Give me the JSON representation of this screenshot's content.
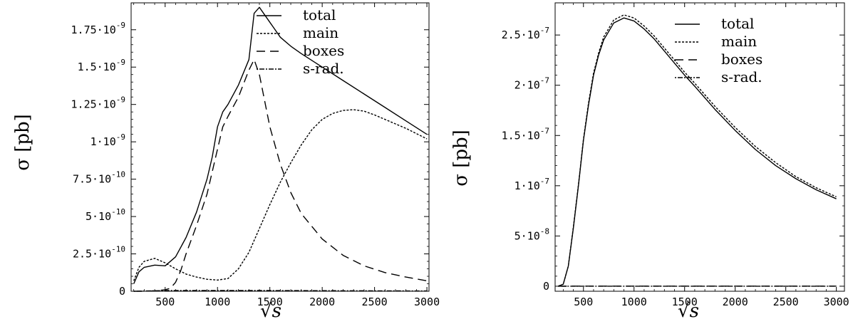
{
  "chart_data": [
    {
      "type": "line",
      "xlabel": "√s",
      "ylabel": "σ [pb]",
      "xlim": [
        175,
        3020
      ],
      "ylim": [
        0,
        1.93e-09
      ],
      "xticks": [
        {
          "value": 500,
          "label": "500"
        },
        {
          "value": 1000,
          "label": "1000"
        },
        {
          "value": 1500,
          "label": "1500"
        },
        {
          "value": 2000,
          "label": "2000"
        },
        {
          "value": 2500,
          "label": "2500"
        },
        {
          "value": 3000,
          "label": "3000"
        }
      ],
      "yticks": [
        {
          "value": 0,
          "mant": "0",
          "exp": ""
        },
        {
          "value": 2.5e-10,
          "mant": "2.5·10",
          "exp": "-10"
        },
        {
          "value": 5e-10,
          "mant": "5·10",
          "exp": "-10"
        },
        {
          "value": 7.5e-10,
          "mant": "7.5·10",
          "exp": "-10"
        },
        {
          "value": 1e-09,
          "mant": "1·10",
          "exp": "-9"
        },
        {
          "value": 1.25e-09,
          "mant": "1.25·10",
          "exp": "-9"
        },
        {
          "value": 1.5e-09,
          "mant": "1.5·10",
          "exp": "-9"
        },
        {
          "value": 1.75e-09,
          "mant": "1.75·10",
          "exp": "-9"
        }
      ],
      "legend_position": "top-right",
      "series": [
        {
          "name": "total",
          "dash": "solid",
          "x": [
            200,
            250,
            300,
            400,
            500,
            600,
            700,
            800,
            900,
            950,
            1000,
            1050,
            1100,
            1200,
            1300,
            1350,
            1400,
            1500,
            1600,
            1700,
            1800,
            2000,
            2200,
            2400,
            2600,
            2800,
            3000
          ],
          "y": [
            5e-11,
            1.3e-10,
            1.6e-10,
            1.75e-10,
            1.7e-10,
            2.3e-10,
            3.6e-10,
            5.3e-10,
            7.5e-10,
            9e-10,
            1.1e-09,
            1.2e-09,
            1.25e-09,
            1.38e-09,
            1.55e-09,
            1.86e-09,
            1.9e-09,
            1.8e-09,
            1.7e-09,
            1.64e-09,
            1.59e-09,
            1.5e-09,
            1.41e-09,
            1.32e-09,
            1.23e-09,
            1.14e-09,
            1.05e-09
          ]
        },
        {
          "name": "main",
          "dash": "dotted",
          "x": [
            200,
            250,
            300,
            400,
            500,
            600,
            700,
            800,
            900,
            1000,
            1100,
            1200,
            1300,
            1400,
            1500,
            1600,
            1700,
            1800,
            1900,
            2000,
            2100,
            2200,
            2300,
            2400,
            2500,
            2600,
            2800,
            3000
          ],
          "y": [
            7e-11,
            1.6e-10,
            2e-10,
            2.2e-10,
            1.9e-10,
            1.5e-10,
            1.15e-10,
            9.5e-11,
            8e-11,
            7.5e-11,
            8.5e-11,
            1.5e-10,
            2.6e-10,
            4.2e-10,
            5.8e-10,
            7.3e-10,
            8.6e-10,
            9.8e-10,
            1.08e-09,
            1.15e-09,
            1.19e-09,
            1.21e-09,
            1.215e-09,
            1.205e-09,
            1.18e-09,
            1.15e-09,
            1.09e-09,
            1.02e-09
          ]
        },
        {
          "name": "boxes",
          "dash": "dashed",
          "x": [
            200,
            300,
            400,
            500,
            550,
            600,
            650,
            700,
            800,
            900,
            1000,
            1050,
            1100,
            1200,
            1300,
            1350,
            1400,
            1500,
            1600,
            1700,
            1800,
            2000,
            2200,
            2400,
            2600,
            2800,
            3000
          ],
          "y": [
            0,
            0,
            3e-12,
            1e-11,
            2e-11,
            6e-11,
            1.4e-10,
            2.5e-10,
            4.4e-10,
            6.5e-10,
            9.5e-10,
            1.1e-09,
            1.17e-09,
            1.3e-09,
            1.48e-09,
            1.55e-09,
            1.45e-09,
            1.1e-09,
            8.5e-10,
            6.6e-10,
            5.2e-10,
            3.5e-10,
            2.4e-10,
            1.7e-10,
            1.25e-10,
            9.5e-11,
            7e-11
          ]
        },
        {
          "name": "s-rad.",
          "dash": "dashdot",
          "x": [
            200,
            500,
            1000,
            1500,
            2000,
            2500,
            3000
          ],
          "y": [
            0,
            5e-12,
            5e-12,
            5e-12,
            4e-12,
            3e-12,
            2e-12
          ]
        }
      ]
    },
    {
      "type": "line",
      "xlabel": "√s",
      "ylabel": "σ [pb]",
      "xlim": [
        220,
        3080
      ],
      "ylim": [
        -5e-09,
        2.82e-07
      ],
      "xticks": [
        {
          "value": 500,
          "label": "500"
        },
        {
          "value": 1000,
          "label": "1000"
        },
        {
          "value": 1500,
          "label": "1500"
        },
        {
          "value": 2000,
          "label": "2000"
        },
        {
          "value": 2500,
          "label": "2500"
        },
        {
          "value": 3000,
          "label": "3000"
        }
      ],
      "yticks": [
        {
          "value": 0,
          "mant": "0",
          "exp": ""
        },
        {
          "value": 5e-08,
          "mant": "5·10",
          "exp": "-8"
        },
        {
          "value": 1e-07,
          "mant": "1·10",
          "exp": "-7"
        },
        {
          "value": 1.5e-07,
          "mant": "1.5·10",
          "exp": "-7"
        },
        {
          "value": 2e-07,
          "mant": "2·10",
          "exp": "-7"
        },
        {
          "value": 2.5e-07,
          "mant": "2.5·10",
          "exp": "-7"
        }
      ],
      "legend_position": "top-right",
      "series": [
        {
          "name": "total",
          "dash": "solid",
          "x": [
            250,
            300,
            350,
            400,
            450,
            500,
            550,
            600,
            650,
            700,
            800,
            900,
            1000,
            1100,
            1200,
            1300,
            1400,
            1500,
            1600,
            1800,
            2000,
            2200,
            2400,
            2600,
            2800,
            3000
          ],
          "y": [
            0,
            2e-09,
            2e-08,
            5.8e-08,
            1e-07,
            1.45e-07,
            1.8e-07,
            2.1e-07,
            2.3e-07,
            2.45e-07,
            2.62e-07,
            2.67e-07,
            2.64e-07,
            2.56e-07,
            2.46e-07,
            2.34e-07,
            2.22e-07,
            2.1e-07,
            1.99e-07,
            1.76e-07,
            1.55e-07,
            1.36e-07,
            1.2e-07,
            1.07e-07,
            9.6e-08,
            8.7e-08
          ]
        },
        {
          "name": "main",
          "dash": "dotted",
          "x": [
            250,
            300,
            350,
            400,
            450,
            500,
            550,
            600,
            650,
            700,
            800,
            900,
            1000,
            1100,
            1200,
            1300,
            1400,
            1500,
            1600,
            1800,
            2000,
            2200,
            2400,
            2600,
            2800,
            3000
          ],
          "y": [
            0,
            2e-09,
            2e-08,
            5.9e-08,
            1.01e-07,
            1.46e-07,
            1.82e-07,
            2.12e-07,
            2.32e-07,
            2.48e-07,
            2.65e-07,
            2.7e-07,
            2.67e-07,
            2.59e-07,
            2.49e-07,
            2.37e-07,
            2.25e-07,
            2.13e-07,
            2.02e-07,
            1.79e-07,
            1.58e-07,
            1.39e-07,
            1.23e-07,
            1.09e-07,
            9.8e-08,
            8.9e-08
          ]
        },
        {
          "name": "boxes",
          "dash": "dashed",
          "x": [
            250,
            500,
            1000,
            1500,
            2000,
            2500,
            3000
          ],
          "y": [
            0,
            1e-10,
            1e-10,
            1e-10,
            1e-10,
            1e-10,
            1e-10
          ]
        },
        {
          "name": "s-rad.",
          "dash": "dashdot",
          "x": [
            250,
            500,
            1000,
            1500,
            2000,
            2500,
            3000
          ],
          "y": [
            0,
            0,
            0,
            0,
            0,
            0,
            0
          ]
        }
      ]
    }
  ]
}
